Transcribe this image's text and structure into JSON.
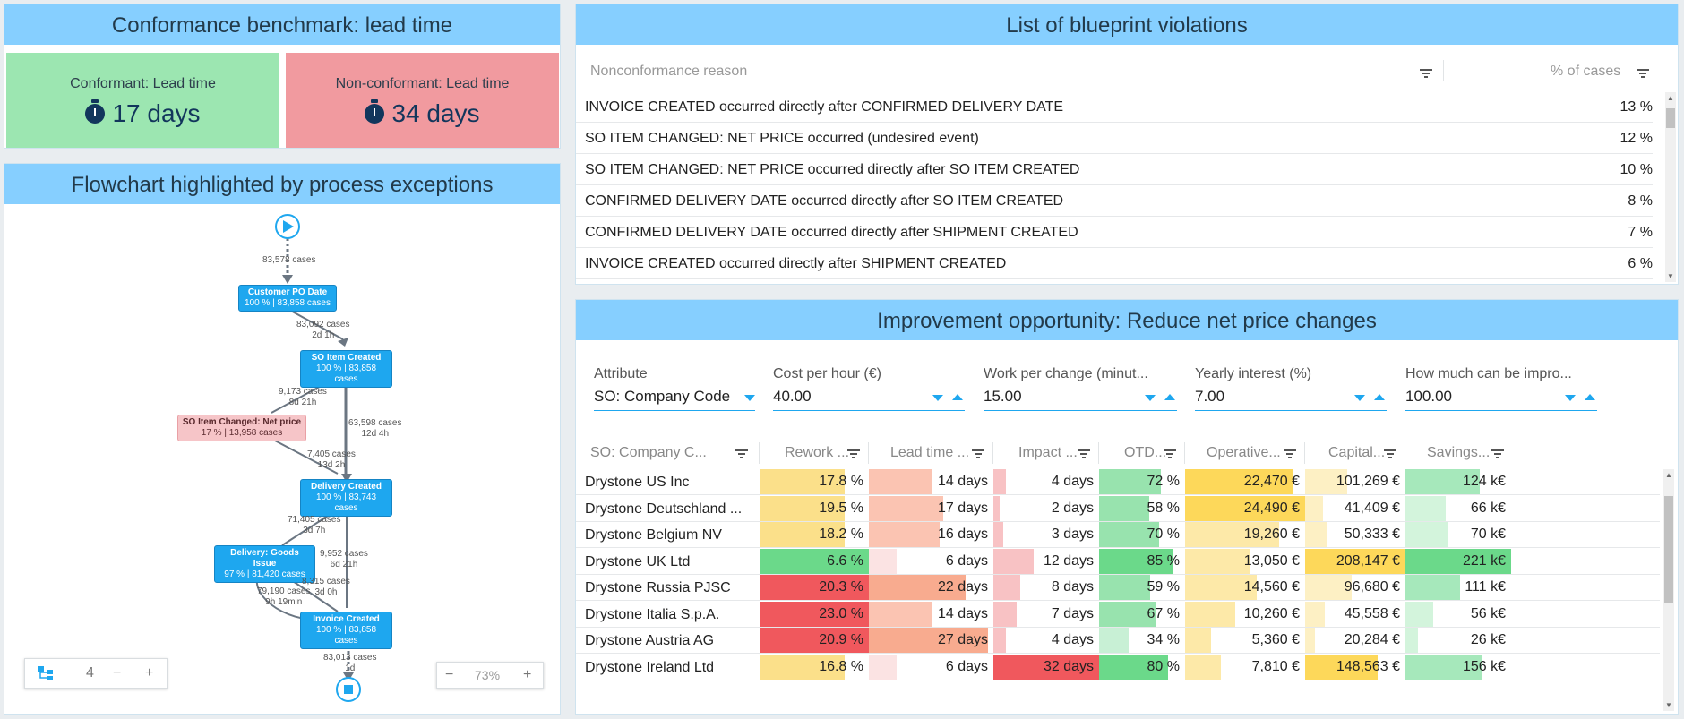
{
  "conformance": {
    "title": "Conformance benchmark: lead time",
    "conformant_label": "Conformant: Lead time",
    "conformant_value": "17 days",
    "nonconformant_label": "Non-conformant: Lead time",
    "nonconformant_value": "34 days"
  },
  "flowchart": {
    "title": "Flowchart highlighted by process exceptions",
    "nodes": [
      {
        "name": "Customer PO Date",
        "sub": "100 % | 83,858 cases"
      },
      {
        "name": "SO Item Created",
        "sub": "100 % | 83,858 cases"
      },
      {
        "name": "SO Item Changed: Net price",
        "sub": "17 % | 13,958 cases"
      },
      {
        "name": "Delivery Created",
        "sub": "100 % | 83,743 cases"
      },
      {
        "name": "Delivery: Goods Issue",
        "sub": "97 % | 81,420 cases"
      },
      {
        "name": "Invoice Created",
        "sub": "100 % | 83,858 cases"
      }
    ],
    "edges": [
      {
        "cases": "83,578 cases",
        "time": ""
      },
      {
        "cases": "83,092 cases",
        "time": "2d 1h"
      },
      {
        "cases": "9,173 cases",
        "time": "8d 21h"
      },
      {
        "cases": "63,598 cases",
        "time": "12d 4h"
      },
      {
        "cases": "7,405 cases",
        "time": "13d 2h"
      },
      {
        "cases": "71,405 cases",
        "time": "3d 7h"
      },
      {
        "cases": "9,952 cases",
        "time": "6d 21h"
      },
      {
        "cases": "8,315 cases",
        "time": "3d 0h"
      },
      {
        "cases": "79,190 cases",
        "time": "9h 19min"
      },
      {
        "cases": "83,013 cases",
        "time": "1d"
      }
    ],
    "levels": "4",
    "zoom": "73%"
  },
  "violations": {
    "title": "List of blueprint violations",
    "col_reason": "Nonconformance reason",
    "col_pct": "% of cases",
    "rows": [
      {
        "reason": "INVOICE CREATED occurred directly after CONFIRMED DELIVERY DATE",
        "pct": "13 %"
      },
      {
        "reason": "SO ITEM CHANGED: NET PRICE occurred (undesired event)",
        "pct": "12 %"
      },
      {
        "reason": "SO ITEM CHANGED: NET PRICE occurred directly after SO ITEM CREATED",
        "pct": "10 %"
      },
      {
        "reason": "CONFIRMED DELIVERY DATE occurred directly after SO ITEM CREATED",
        "pct": "8 %"
      },
      {
        "reason": "CONFIRMED DELIVERY DATE occurred directly after SHIPMENT CREATED",
        "pct": "7 %"
      },
      {
        "reason": "INVOICE CREATED occurred directly after SHIPMENT CREATED",
        "pct": "6 %"
      }
    ]
  },
  "improvement": {
    "title": "Improvement opportunity: Reduce net price changes",
    "filters": [
      {
        "label": "Attribute",
        "value": "SO: Company Code"
      },
      {
        "label": "Cost per hour (€)",
        "value": "40.00"
      },
      {
        "label": "Work per change (minut...",
        "value": "15.00"
      },
      {
        "label": "Yearly interest (%)",
        "value": "7.00"
      },
      {
        "label": "How much can be impro...",
        "value": "100.00"
      }
    ],
    "columns": [
      "SO: Company C...",
      "Rework ...",
      "Lead time ...",
      "Impact ...",
      "OTD...",
      "Operative...",
      "Capital...",
      "Savings..."
    ],
    "rows": [
      {
        "name": "Drystone US Inc",
        "rework": "17.8 %",
        "lead": "14 days",
        "impact": "4 days",
        "otd": "72 %",
        "oper": "22,470 €",
        "cap": "101,269 €",
        "sav": "124 k€",
        "f": [
          0.78,
          0.5,
          0.12,
          0.72,
          0.9,
          0.42,
          0.7
        ]
      },
      {
        "name": "Drystone Deutschland ...",
        "rework": "19.5 %",
        "lead": "17 days",
        "impact": "2 days",
        "otd": "58 %",
        "oper": "24,490 €",
        "cap": "41,409 €",
        "sav": "66 k€",
        "f": [
          0.78,
          0.6,
          0.06,
          0.58,
          1.0,
          0.18,
          0.38
        ]
      },
      {
        "name": "Drystone Belgium NV",
        "rework": "18.2 %",
        "lead": "16 days",
        "impact": "3 days",
        "otd": "70 %",
        "oper": "19,260 €",
        "cap": "50,333 €",
        "sav": "70 k€",
        "f": [
          0.78,
          0.57,
          0.09,
          0.7,
          0.78,
          0.22,
          0.4
        ]
      },
      {
        "name": "Drystone UK Ltd",
        "rework": "6.6 %",
        "lead": "6 days",
        "impact": "12 days",
        "otd": "85 %",
        "oper": "13,050 €",
        "cap": "208,147 €",
        "sav": "221 k€",
        "f": [
          1.0,
          0.22,
          0.38,
          0.85,
          0.54,
          1.0,
          1.0
        ]
      },
      {
        "name": "Drystone Russia PJSC",
        "rework": "20.3 %",
        "lead": "22 days",
        "impact": "8 days",
        "otd": "59 %",
        "oper": "14,560 €",
        "cap": "96,680 €",
        "sav": "111 k€",
        "f": [
          1.0,
          0.78,
          0.25,
          0.59,
          0.6,
          0.46,
          0.52
        ]
      },
      {
        "name": "Drystone Italia S.p.A.",
        "rework": "23.0 %",
        "lead": "14 days",
        "impact": "7 days",
        "otd": "67 %",
        "oper": "10,260 €",
        "cap": "45,558 €",
        "sav": "56 k€",
        "f": [
          1.0,
          0.5,
          0.22,
          0.67,
          0.42,
          0.2,
          0.26
        ]
      },
      {
        "name": "Drystone Austria AG",
        "rework": "20.9 %",
        "lead": "27 days",
        "impact": "4 days",
        "otd": "34 %",
        "oper": "5,360 €",
        "cap": "20,284 €",
        "sav": "26 k€",
        "f": [
          1.0,
          0.96,
          0.12,
          0.34,
          0.22,
          0.1,
          0.12
        ]
      },
      {
        "name": "Drystone Ireland Ltd",
        "rework": "16.8 %",
        "lead": "6 days",
        "impact": "32 days",
        "otd": "80 %",
        "oper": "7,810 €",
        "cap": "148,563 €",
        "sav": "156 k€",
        "f": [
          0.78,
          0.22,
          1.0,
          0.8,
          0.3,
          0.72,
          0.72
        ]
      }
    ]
  },
  "colors": {
    "header_bg": "#86cfff",
    "accent": "#1ea7ef",
    "conformant_bg": "#9ce6b1",
    "nonconformant_bg": "#f19a9f"
  }
}
